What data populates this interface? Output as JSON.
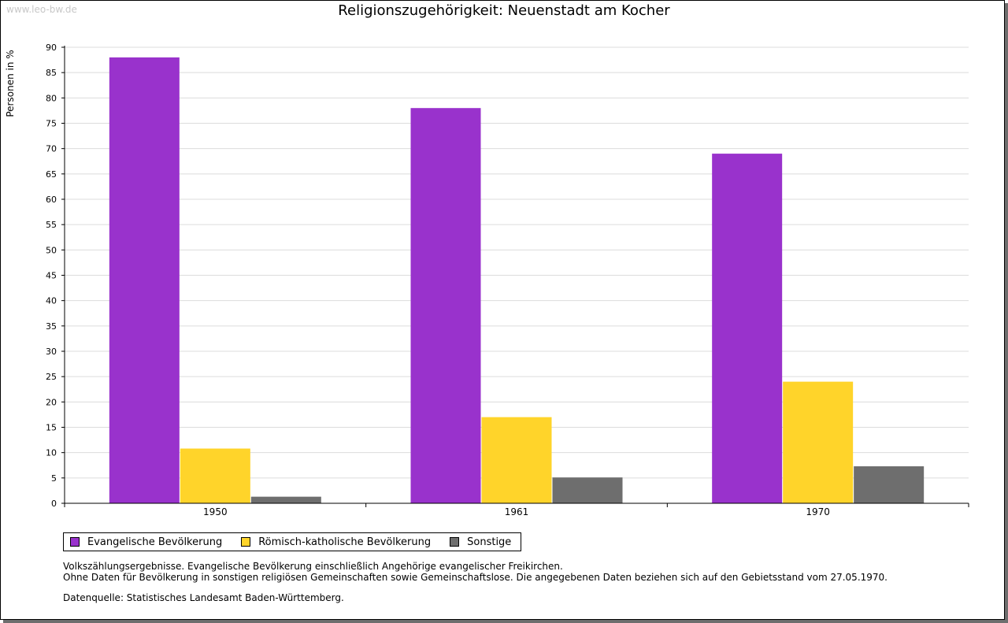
{
  "watermark": "www.leo-bw.de",
  "chart_data": {
    "type": "bar",
    "title": "Religionszugehörigkeit: Neuenstadt am Kocher",
    "ylabel": "Personen in %",
    "xlabel": "",
    "ylim": [
      0,
      90
    ],
    "ytick_step": 5,
    "grid": true,
    "categories": [
      "1950",
      "1961",
      "1970"
    ],
    "series": [
      {
        "name": "Evangelische Bevölkerung",
        "color": "#9932cc",
        "values": [
          88.0,
          78.0,
          69.0
        ]
      },
      {
        "name": "Römisch-katholische Bevölkerung",
        "color": "#ffd42a",
        "values": [
          10.8,
          17.0,
          24.0
        ]
      },
      {
        "name": "Sonstige",
        "color": "#6e6e6e",
        "values": [
          1.3,
          5.1,
          7.3
        ]
      }
    ],
    "legend_position": "bottom-left"
  },
  "notes": {
    "line1": "Volkszählungsergebnisse. Evangelische Bevölkerung einschließlich Angehörige evangelischer Freikirchen.",
    "line2": "Ohne Daten für Bevölkerung in sonstigen religiösen Gemeinschaften sowie Gemeinschaftslose. Die angegebenen Daten beziehen sich auf den Gebietsstand vom 27.05.1970.",
    "source": "Datenquelle: Statistisches Landesamt Baden-Württemberg."
  }
}
